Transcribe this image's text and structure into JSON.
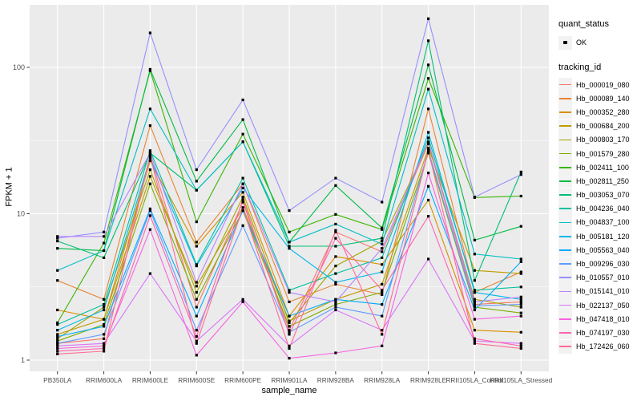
{
  "figure": {
    "xlabel": "sample_name",
    "ylabel": "FPKM + 1"
  },
  "legend": {
    "quant_status_title": "quant_status",
    "ok_label": "OK",
    "tracking_id_title": "tracking_id"
  },
  "colors": {
    "panel_bg": "#ebebeb",
    "grid": "#ffffff",
    "tick": "#333333",
    "tick_label": "#4d4d4d",
    "legend_key_bg": "#f2f2f2",
    "point": "#000000"
  },
  "chart_data": {
    "type": "line",
    "title": "",
    "xlabel": "sample_name",
    "ylabel": "FPKM + 1",
    "y_scale": "log10",
    "y_ticks": [
      1,
      10,
      100
    ],
    "y_minor": [
      3.162,
      31.62
    ],
    "ylim": [
      0.84,
      270
    ],
    "grid": true,
    "legend_position": "right",
    "point_marker": {
      "shape": "square",
      "color": "#000000",
      "label": "OK"
    },
    "categories": [
      "PB350LA",
      "RRIM600LA",
      "RRIM600LE",
      "RRIM600SE",
      "RRIM600PE",
      "RRIM901LA",
      "RRIM928BA",
      "RRIM928LA",
      "RRIM928LE",
      "RRII105LA_Control",
      "RRII105LA_Stressed"
    ],
    "series": [
      {
        "name": "Hb_000019_080",
        "color": "#f8766d",
        "values": [
          1.3,
          1.4,
          25,
          2.3,
          12,
          1.6,
          7.5,
          5.5,
          30,
          2.4,
          2.5
        ]
      },
      {
        "name": "Hb_000089_140",
        "color": "#ea8331",
        "values": [
          3.5,
          2.6,
          40,
          6.4,
          16,
          2.5,
          3.3,
          2.8,
          52,
          2.9,
          4.0
        ]
      },
      {
        "name": "Hb_000352_280",
        "color": "#d89000",
        "values": [
          2.2,
          1.9,
          23,
          6.0,
          14,
          2.0,
          5.1,
          4.5,
          12.4,
          1.6,
          1.55
        ]
      },
      {
        "name": "Hb_000684_200",
        "color": "#c09b00",
        "values": [
          1.5,
          1.9,
          18,
          3.2,
          11,
          1.85,
          2.6,
          3.3,
          28,
          4.1,
          3.9
        ]
      },
      {
        "name": "Hb_000803_170",
        "color": "#a3a500",
        "values": [
          1.4,
          2.3,
          20,
          2.9,
          13,
          1.8,
          4.4,
          6.5,
          30,
          2.6,
          2.3
        ]
      },
      {
        "name": "Hb_001579_280",
        "color": "#7cae00",
        "values": [
          1.35,
          1.75,
          16,
          2.6,
          10.5,
          1.7,
          2.4,
          2.9,
          26,
          2.3,
          2.1
        ]
      },
      {
        "name": "Hb_002411_100",
        "color": "#39b600",
        "values": [
          1.8,
          6.3,
          95,
          8.8,
          35,
          7.5,
          9.9,
          7.8,
          84,
          12.9,
          13.2
        ]
      },
      {
        "name": "Hb_002811_250",
        "color": "#00bb45",
        "values": [
          5.8,
          5.6,
          97,
          16.7,
          44,
          6.4,
          15.6,
          8.0,
          104,
          6.6,
          8.2
        ]
      },
      {
        "name": "Hb_003053_070",
        "color": "#00bf74",
        "values": [
          6.5,
          5.0,
          26,
          14.5,
          31,
          6.0,
          6.0,
          6.8,
          152,
          3.5,
          19.3
        ]
      },
      {
        "name": "Hb_004236_040",
        "color": "#00c19f",
        "values": [
          1.75,
          2.4,
          27,
          4.5,
          17.5,
          3.0,
          3.9,
          5.0,
          33,
          3.0,
          3.16
        ]
      },
      {
        "name": "Hb_004837_100",
        "color": "#00bfc4",
        "values": [
          4.1,
          5.6,
          52,
          14.5,
          31,
          6.4,
          8.5,
          6.2,
          71,
          5.3,
          4.9
        ]
      },
      {
        "name": "Hb_005181_120",
        "color": "#00b8e7",
        "values": [
          1.6,
          2.2,
          24,
          4.4,
          15,
          5.8,
          3.4,
          4.0,
          36,
          2.9,
          2.6
        ]
      },
      {
        "name": "Hb_005563_040",
        "color": "#00acfc",
        "values": [
          1.45,
          1.7,
          10.8,
          2.0,
          10.5,
          2.0,
          2.6,
          2.4,
          15.4,
          2.2,
          4.7
        ]
      },
      {
        "name": "Hb_009296_030",
        "color": "#619cff",
        "values": [
          1.3,
          1.5,
          10.5,
          1.6,
          8.3,
          1.55,
          2.3,
          2.0,
          27,
          2.35,
          2.4
        ]
      },
      {
        "name": "Hb_010557_010",
        "color": "#9590ff",
        "values": [
          6.8,
          7.5,
          172,
          20,
          60,
          10.5,
          17.5,
          12,
          215,
          13,
          18.5
        ]
      },
      {
        "name": "Hb_015141_010",
        "color": "#b983ff",
        "values": [
          7.0,
          7.0,
          26,
          3.4,
          16,
          2.9,
          2.5,
          5.8,
          31,
          2.5,
          2.7
        ]
      },
      {
        "name": "Hb_022137_050",
        "color": "#db72fb",
        "values": [
          1.25,
          1.3,
          3.9,
          1.35,
          2.6,
          1.25,
          2.2,
          1.6,
          4.9,
          1.35,
          1.3
        ]
      },
      {
        "name": "Hb_047418_010",
        "color": "#f763e0",
        "values": [
          1.2,
          1.25,
          7.8,
          1.08,
          2.5,
          1.03,
          1.12,
          1.25,
          19,
          1.9,
          2.0
        ]
      },
      {
        "name": "Hb_074197_030",
        "color": "#ff65ae",
        "values": [
          1.15,
          1.2,
          9.7,
          1.45,
          12.5,
          1.5,
          6.8,
          3.0,
          9.6,
          1.4,
          1.25
        ]
      },
      {
        "name": "Hb_172426_060",
        "color": "#ff6b94",
        "values": [
          1.1,
          1.15,
          25,
          1.3,
          11,
          1.2,
          7.7,
          1.5,
          27,
          1.3,
          1.2
        ]
      }
    ]
  }
}
